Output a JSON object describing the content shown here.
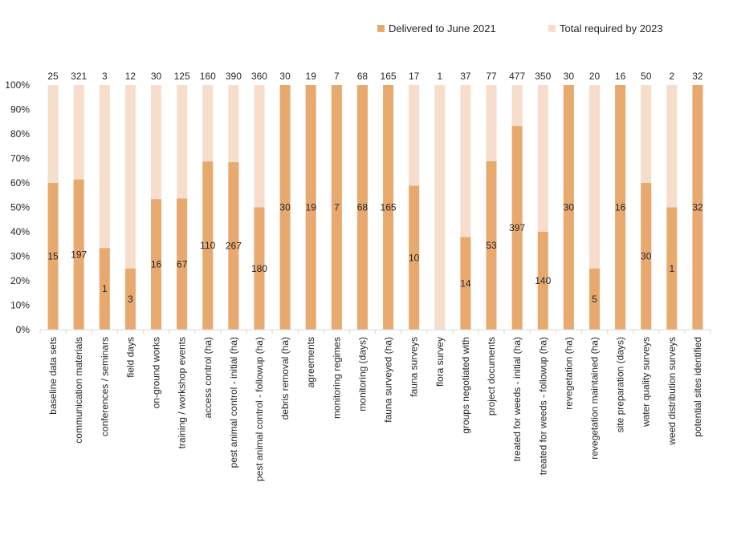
{
  "chart_data": {
    "type": "bar",
    "stacked": "100%",
    "legend_position": "top-right",
    "grid": false,
    "ylim": [
      0,
      100
    ],
    "yticks": [
      "0%",
      "10%",
      "20%",
      "30%",
      "40%",
      "50%",
      "60%",
      "70%",
      "80%",
      "90%",
      "100%"
    ],
    "colors": {
      "delivered": "#e8a96f",
      "required": "#f6ddcc"
    },
    "series": [
      {
        "name": "Delivered to June 2021"
      },
      {
        "name": "Total required by 2023"
      }
    ],
    "categories": [
      "baseline data sets",
      "communication materials",
      "conferences / seminars",
      "field days",
      "on-ground works",
      "training / workshop events",
      "access control (ha)",
      "pest animal control - initial (ha)",
      "pest animal control - followup (ha)",
      "debris removal (ha)",
      "agreements",
      "monitoring regimes",
      "monitoring (days)",
      "fauna surveyed (ha)",
      "fauna surveys",
      "flora survey",
      "groups negotiated with",
      "project documents",
      "treated for weeds - initial (ha)",
      "treated for weeds - followup (ha)",
      "revegetation (ha)",
      "revegetation maintained (ha)",
      "site preparation (days)",
      "water quality surveys",
      "weed distribution surveys",
      "potential sites identified"
    ],
    "delivered": [
      15,
      197,
      1,
      3,
      16,
      67,
      110,
      267,
      180,
      30,
      19,
      7,
      68,
      165,
      10,
      0,
      14,
      53,
      397,
      140,
      30,
      5,
      16,
      30,
      1,
      32
    ],
    "total_required": [
      25,
      321,
      3,
      12,
      30,
      125,
      160,
      390,
      360,
      30,
      19,
      7,
      68,
      165,
      17,
      1,
      37,
      77,
      477,
      350,
      30,
      20,
      16,
      50,
      2,
      32
    ],
    "delivered_labels": [
      "15",
      "197",
      "1",
      "3",
      "16",
      "67",
      "110",
      "267",
      "180",
      "30",
      "19",
      "7",
      "68",
      "165",
      "10",
      "",
      "14",
      "53",
      "397",
      "140",
      "30",
      "5",
      "16",
      "30",
      "1",
      "32"
    ],
    "total_labels": [
      "25",
      "321",
      "3",
      "12",
      "30",
      "125",
      "160",
      "390",
      "360",
      "30",
      "19",
      "7",
      "68",
      "165",
      "17",
      "1",
      "37",
      "77",
      "477",
      "350",
      "30",
      "20",
      "16",
      "50",
      "2",
      "32"
    ]
  }
}
